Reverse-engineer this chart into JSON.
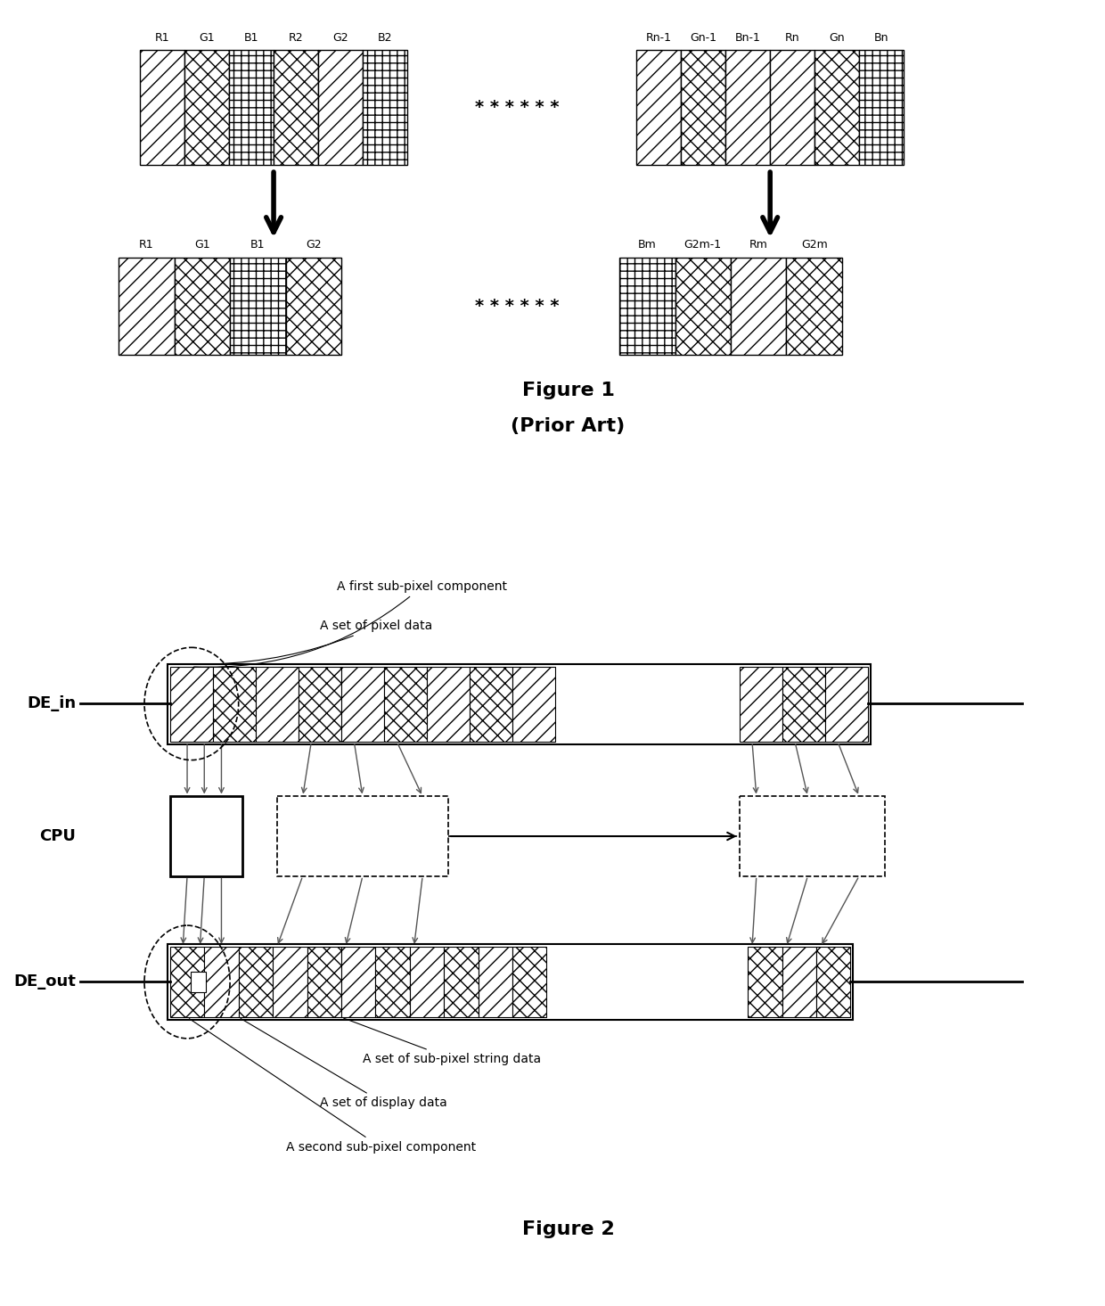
{
  "fig_width": 12.4,
  "fig_height": 14.65,
  "bg_color": "#ffffff",
  "fig1_title": "Figure 1",
  "fig1_subtitle": "(Prior Art)",
  "fig2_title": "Figure 2",
  "fig1_top_labels_left": [
    "R1",
    "G1",
    "B1",
    "R2",
    "G2",
    "B2"
  ],
  "fig1_top_labels_right": [
    "Rn-1",
    "Gn-1",
    "Bn-1",
    "Rn",
    "Gn",
    "Bn"
  ],
  "fig1_bot_labels_left": [
    "R1",
    "G1",
    "B1",
    "G2"
  ],
  "fig1_bot_labels_right": [
    "Bm",
    "G2m-1",
    "Rm",
    "G2m"
  ],
  "fig2_label_DE_in": "DE_in",
  "fig2_label_CPU": "CPU",
  "fig2_label_DE_out": "DE_out",
  "fig2_ann1": "A first sub-pixel component",
  "fig2_ann2": "A set of pixel data",
  "fig2_ann3": "A set of sub-pixel string data",
  "fig2_ann4": "A set of display data",
  "fig2_ann5": "A second sub-pixel component"
}
